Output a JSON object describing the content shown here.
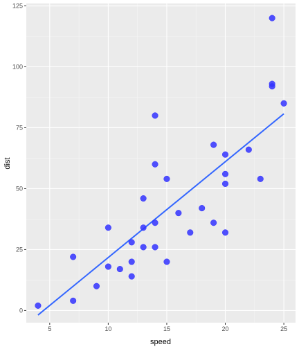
{
  "chart_data": {
    "type": "scatter",
    "xlabel": "speed",
    "ylabel": "dist",
    "xlim": [
      3.0,
      26.0
    ],
    "ylim": [
      -5,
      126
    ],
    "x_ticks": [
      5,
      10,
      15,
      20,
      25
    ],
    "y_ticks": [
      0,
      25,
      50,
      75,
      100,
      125
    ],
    "x_tick_labels": [
      "5",
      "10",
      "15",
      "20",
      "25"
    ],
    "y_tick_labels": [
      "0",
      "25",
      "50",
      "75",
      "100",
      "125"
    ],
    "grid": true,
    "legend": "none",
    "colors": {
      "panel": "#ebebeb",
      "grid_major": "#ffffff",
      "grid_minor": "#f5f5f5",
      "points": "#3333ff",
      "line": "#3366ff"
    },
    "points": [
      {
        "x": 4,
        "y": 2
      },
      {
        "x": 7,
        "y": 4
      },
      {
        "x": 7,
        "y": 22
      },
      {
        "x": 9,
        "y": 10
      },
      {
        "x": 10,
        "y": 18
      },
      {
        "x": 10,
        "y": 34
      },
      {
        "x": 11,
        "y": 17
      },
      {
        "x": 12,
        "y": 14
      },
      {
        "x": 12,
        "y": 20
      },
      {
        "x": 12,
        "y": 28
      },
      {
        "x": 13,
        "y": 26
      },
      {
        "x": 13,
        "y": 34
      },
      {
        "x": 13,
        "y": 46
      },
      {
        "x": 14,
        "y": 26
      },
      {
        "x": 14,
        "y": 36
      },
      {
        "x": 14,
        "y": 60
      },
      {
        "x": 14,
        "y": 80
      },
      {
        "x": 15,
        "y": 20
      },
      {
        "x": 15,
        "y": 54
      },
      {
        "x": 16,
        "y": 40
      },
      {
        "x": 17,
        "y": 32
      },
      {
        "x": 18,
        "y": 42
      },
      {
        "x": 19,
        "y": 36
      },
      {
        "x": 19,
        "y": 68
      },
      {
        "x": 20,
        "y": 32
      },
      {
        "x": 20,
        "y": 52
      },
      {
        "x": 20,
        "y": 56
      },
      {
        "x": 20,
        "y": 64
      },
      {
        "x": 22,
        "y": 66
      },
      {
        "x": 23,
        "y": 54
      },
      {
        "x": 24,
        "y": 92
      },
      {
        "x": 24,
        "y": 93
      },
      {
        "x": 24,
        "y": 120
      },
      {
        "x": 25,
        "y": 85
      }
    ],
    "fit_line": {
      "x": [
        4,
        25
      ],
      "y": [
        -1.85,
        80.73
      ]
    }
  }
}
